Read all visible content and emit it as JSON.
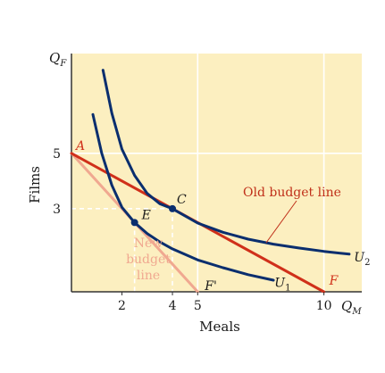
{
  "chart_data": {
    "type": "line",
    "title": "",
    "xlabel": "Meals",
    "ylabel": "Films",
    "x_axis_symbol": "Q",
    "x_axis_symbol_sub": "M",
    "y_axis_symbol": "Q",
    "y_axis_symbol_sub": "F",
    "xlim": [
      0,
      11.5
    ],
    "ylim": [
      0,
      8.6
    ],
    "x_ticks": [
      "2",
      "4",
      "5",
      "10"
    ],
    "y_ticks": [
      "5",
      "3"
    ],
    "grid": true,
    "series": [
      {
        "key": "old",
        "name": "Old budget line",
        "color": "#d0301a",
        "x": [
          0,
          10
        ],
        "y": [
          5,
          0
        ]
      },
      {
        "key": "new",
        "name": "New budget line",
        "color": "#f0a890",
        "x": [
          0,
          5
        ],
        "y": [
          5,
          0
        ]
      },
      {
        "key": "u2",
        "name": "U2",
        "color": "#0a2e6e",
        "x": [
          1.25,
          1.6,
          2.0,
          2.5,
          3.0,
          3.5,
          4.0,
          5.0,
          6.0,
          7.0,
          8.0,
          9.0,
          10.0,
          11.0
        ],
        "y": [
          8.0,
          6.45,
          5.15,
          4.2,
          3.55,
          3.18,
          3.0,
          2.48,
          2.15,
          1.9,
          1.72,
          1.58,
          1.46,
          1.36
        ]
      },
      {
        "key": "u1",
        "name": "U1",
        "color": "#0a2e6e",
        "x": [
          0.85,
          1.2,
          1.6,
          2.0,
          2.5,
          3.0,
          3.5,
          4.0,
          5.0,
          6.0,
          7.0,
          8.0
        ],
        "y": [
          6.4,
          5.0,
          3.85,
          3.05,
          2.5,
          2.1,
          1.8,
          1.55,
          1.15,
          0.87,
          0.62,
          0.42
        ]
      }
    ],
    "points": [
      {
        "label": "A",
        "x": 0,
        "y": 5
      },
      {
        "label": "C",
        "x": 4,
        "y": 3
      },
      {
        "label": "E",
        "x": 2.5,
        "y": 2.5
      },
      {
        "label": "F",
        "x": 10,
        "y": 0
      },
      {
        "label": "F'",
        "x": 5,
        "y": 0
      }
    ],
    "annotations": {
      "old_budget": "Old budget line",
      "new_budget": [
        "New",
        "budget",
        "line"
      ]
    },
    "colors": {
      "background": "#fcefc0",
      "axis": "#333333",
      "grid": "#ffffff",
      "guide": "#ffffff"
    }
  }
}
